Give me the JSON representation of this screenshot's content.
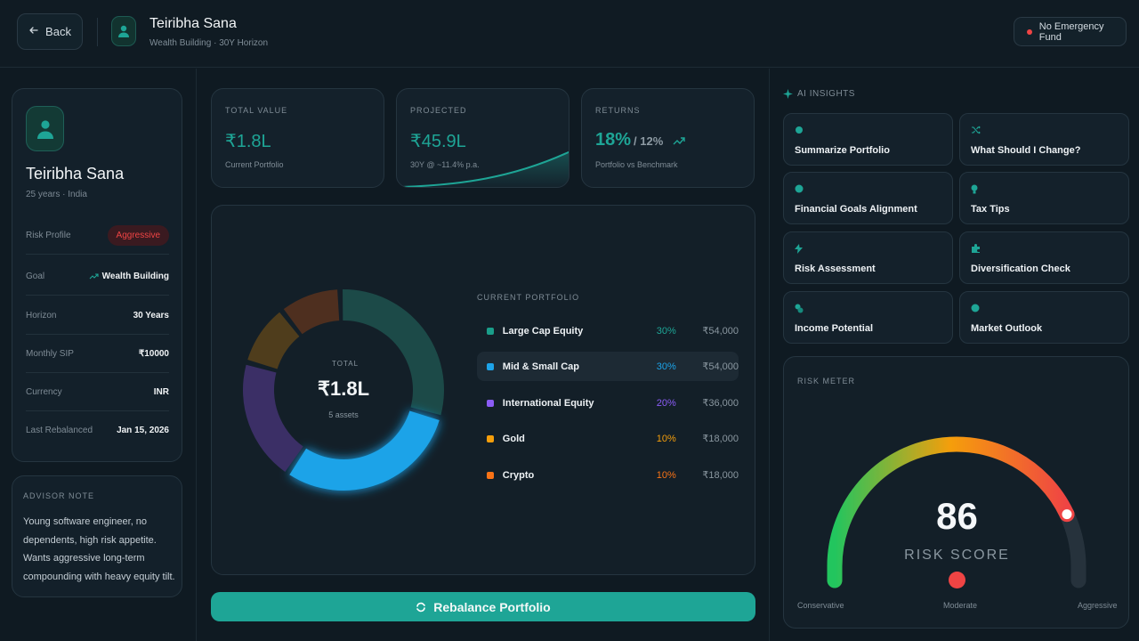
{
  "header": {
    "back_label": "Back",
    "client_name": "Teiribha Sana",
    "client_sub": "Wealth Building · 30Y Horizon",
    "alert_label": "No Emergency Fund",
    "alert_color": "#ef4444"
  },
  "profile": {
    "name": "Teiribha Sana",
    "sub": "25 years · India",
    "rows": [
      {
        "label": "Risk Profile",
        "value": "Aggressive"
      },
      {
        "label": "Goal",
        "value": "Wealth Building"
      },
      {
        "label": "Horizon",
        "value": "30 Years"
      },
      {
        "label": "Monthly SIP",
        "value": "₹10000"
      },
      {
        "label": "Currency",
        "value": "INR"
      },
      {
        "label": "Last Rebalanced",
        "value": "Jan 15, 2026"
      }
    ]
  },
  "advisor_note": {
    "title": "ADVISOR NOTE",
    "text": "Young software engineer, no dependents, high risk appetite. Wants aggressive long-term compounding with heavy equity tilt."
  },
  "stats": {
    "total": {
      "label": "TOTAL VALUE",
      "value": "₹1.8L",
      "sub": "Current Portfolio"
    },
    "projected": {
      "label": "PROJECTED",
      "value": "₹45.9L",
      "sub": "30Y @ ~11.4% p.a."
    },
    "returns": {
      "label": "RETURNS",
      "value": "18%",
      "benchmark": "/ 12%",
      "sub": "Portfolio vs Benchmark"
    }
  },
  "donut": {
    "total_label": "TOTAL",
    "total_value": "₹1.8L",
    "count": "5 assets"
  },
  "portfolio": {
    "title": "CURRENT PORTFOLIO",
    "holdings": [
      {
        "name": "Large Cap Equity",
        "pct": "30%",
        "amount": "₹54,000",
        "share": 30,
        "color": "#1a9e8a",
        "arc": "#1c4a48"
      },
      {
        "name": "Mid & Small Cap",
        "pct": "30%",
        "amount": "₹54,000",
        "share": 30,
        "color": "#1da3e8",
        "arc": "#1c9be0"
      },
      {
        "name": "International Equity",
        "pct": "20%",
        "amount": "₹36,000",
        "share": 20,
        "color": "#8b5cf6",
        "arc": "#3b2f66"
      },
      {
        "name": "Gold",
        "pct": "10%",
        "amount": "₹18,000",
        "share": 10,
        "color": "#f59e0b",
        "arc": "#4f3d1c"
      },
      {
        "name": "Crypto",
        "pct": "10%",
        "amount": "₹18,000",
        "share": 10,
        "color": "#f97316",
        "arc": "#4e2f1f"
      }
    ]
  },
  "rebalance_label": "Rebalance Portfolio",
  "ai_insights": {
    "title": "AI INSIGHTS",
    "items": [
      {
        "label": "Summarize Portfolio",
        "icon": "dot-icon"
      },
      {
        "label": "What Should I Change?",
        "icon": "shuffle-icon"
      },
      {
        "label": "Financial Goals Alignment",
        "icon": "target-icon"
      },
      {
        "label": "Tax Tips",
        "icon": "lightbulb-icon"
      },
      {
        "label": "Risk Assessment",
        "icon": "bolt-icon"
      },
      {
        "label": "Diversification Check",
        "icon": "puzzle-icon"
      },
      {
        "label": "Income Potential",
        "icon": "coins-icon"
      },
      {
        "label": "Market Outlook",
        "icon": "globe-icon"
      }
    ]
  },
  "risk_meter": {
    "title": "RISK METER",
    "score": "86",
    "score_value": 86,
    "score_label": "RISK SCORE",
    "low_label": "Conservative",
    "mid_label": "Moderate",
    "high_label": "Aggressive"
  },
  "colors": {
    "accent": "#1ea596",
    "danger": "#ef4444"
  }
}
